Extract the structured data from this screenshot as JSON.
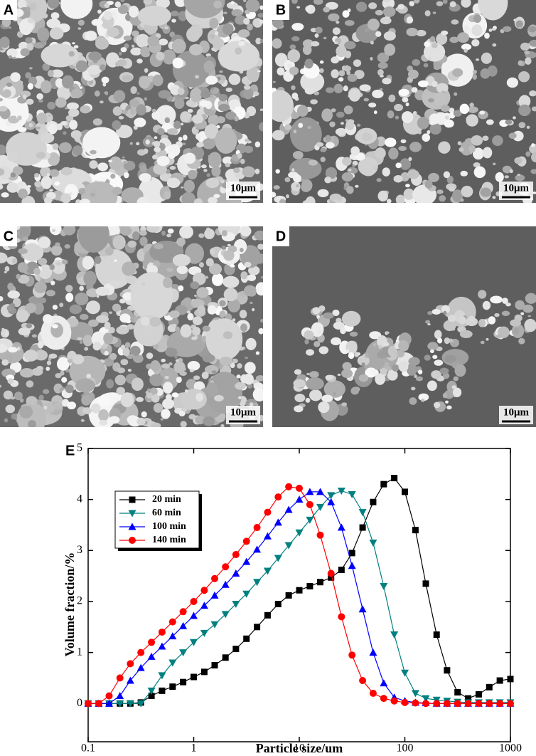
{
  "panels": [
    {
      "label": "A",
      "scale_bar": "10μm"
    },
    {
      "label": "B",
      "scale_bar": "10μm"
    },
    {
      "label": "C",
      "scale_bar": "10μm"
    },
    {
      "label": "D",
      "scale_bar": "10μm"
    }
  ],
  "chart_data": {
    "type": "line",
    "panel_label": "E",
    "x_label": "Particle size/um",
    "y_label": "Volume fraction/%",
    "log_x": true,
    "x": [
      0.1,
      0.126,
      0.158,
      0.2,
      0.251,
      0.316,
      0.398,
      0.501,
      0.631,
      0.794,
      1,
      1.26,
      1.58,
      2,
      2.51,
      3.16,
      3.98,
      5.01,
      6.31,
      7.94,
      10,
      12.6,
      15.8,
      20,
      25.1,
      31.6,
      39.8,
      50.1,
      63.1,
      79.4,
      100,
      126,
      158,
      200,
      251,
      316,
      398,
      501,
      631,
      794,
      1000
    ],
    "series": [
      {
        "name": "20 min",
        "color": "#000000",
        "marker": "square",
        "values": [
          0,
          0,
          0,
          0,
          0,
          0.02,
          0.15,
          0.25,
          0.33,
          0.42,
          0.52,
          0.62,
          0.75,
          0.9,
          1.07,
          1.27,
          1.5,
          1.73,
          1.95,
          2.12,
          2.22,
          2.3,
          2.38,
          2.47,
          2.62,
          2.95,
          3.45,
          3.95,
          4.3,
          4.42,
          4.15,
          3.4,
          2.35,
          1.35,
          0.65,
          0.22,
          0.1,
          0.18,
          0.32,
          0.45,
          0.48
        ]
      },
      {
        "name": "60 min",
        "color": "#008080",
        "marker": "triangle-down",
        "values": [
          0,
          0,
          0,
          0,
          0,
          0,
          0.25,
          0.55,
          0.8,
          1.0,
          1.2,
          1.38,
          1.55,
          1.75,
          1.95,
          2.15,
          2.38,
          2.6,
          2.85,
          3.1,
          3.35,
          3.6,
          3.85,
          4.08,
          4.17,
          4.1,
          3.75,
          3.15,
          2.3,
          1.35,
          0.6,
          0.2,
          0.1,
          0.07,
          0.05,
          0.03,
          0.02,
          0.02,
          0.02,
          0.02,
          0.02
        ]
      },
      {
        "name": "100 min",
        "color": "#0000ff",
        "marker": "triangle-up",
        "values": [
          0,
          0,
          0,
          0.15,
          0.45,
          0.7,
          0.92,
          1.12,
          1.32,
          1.52,
          1.72,
          1.92,
          2.12,
          2.33,
          2.55,
          2.78,
          3.02,
          3.28,
          3.55,
          3.8,
          4.0,
          4.15,
          4.15,
          3.95,
          3.45,
          2.7,
          1.85,
          1.0,
          0.4,
          0.12,
          0.05,
          0.02,
          0.01,
          0,
          0,
          0,
          0,
          0,
          0,
          0,
          0
        ]
      },
      {
        "name": "140 min",
        "color": "#ff0000",
        "marker": "circle",
        "values": [
          0,
          0,
          0.15,
          0.5,
          0.78,
          1.0,
          1.2,
          1.4,
          1.6,
          1.8,
          2.0,
          2.22,
          2.45,
          2.68,
          2.92,
          3.18,
          3.45,
          3.75,
          4.05,
          4.25,
          4.22,
          3.9,
          3.3,
          2.55,
          1.7,
          0.95,
          0.45,
          0.2,
          0.1,
          0.05,
          0.02,
          0.01,
          0,
          0,
          0,
          0,
          0,
          0,
          0,
          0,
          0
        ]
      }
    ],
    "xlim": [
      0.1,
      1000
    ],
    "xticks": [
      0.1,
      1,
      10,
      100,
      1000
    ],
    "ylim": [
      -0.75,
      5
    ],
    "yticks": [
      0,
      1,
      2,
      3,
      4,
      5
    ],
    "legend": "upper-left"
  }
}
